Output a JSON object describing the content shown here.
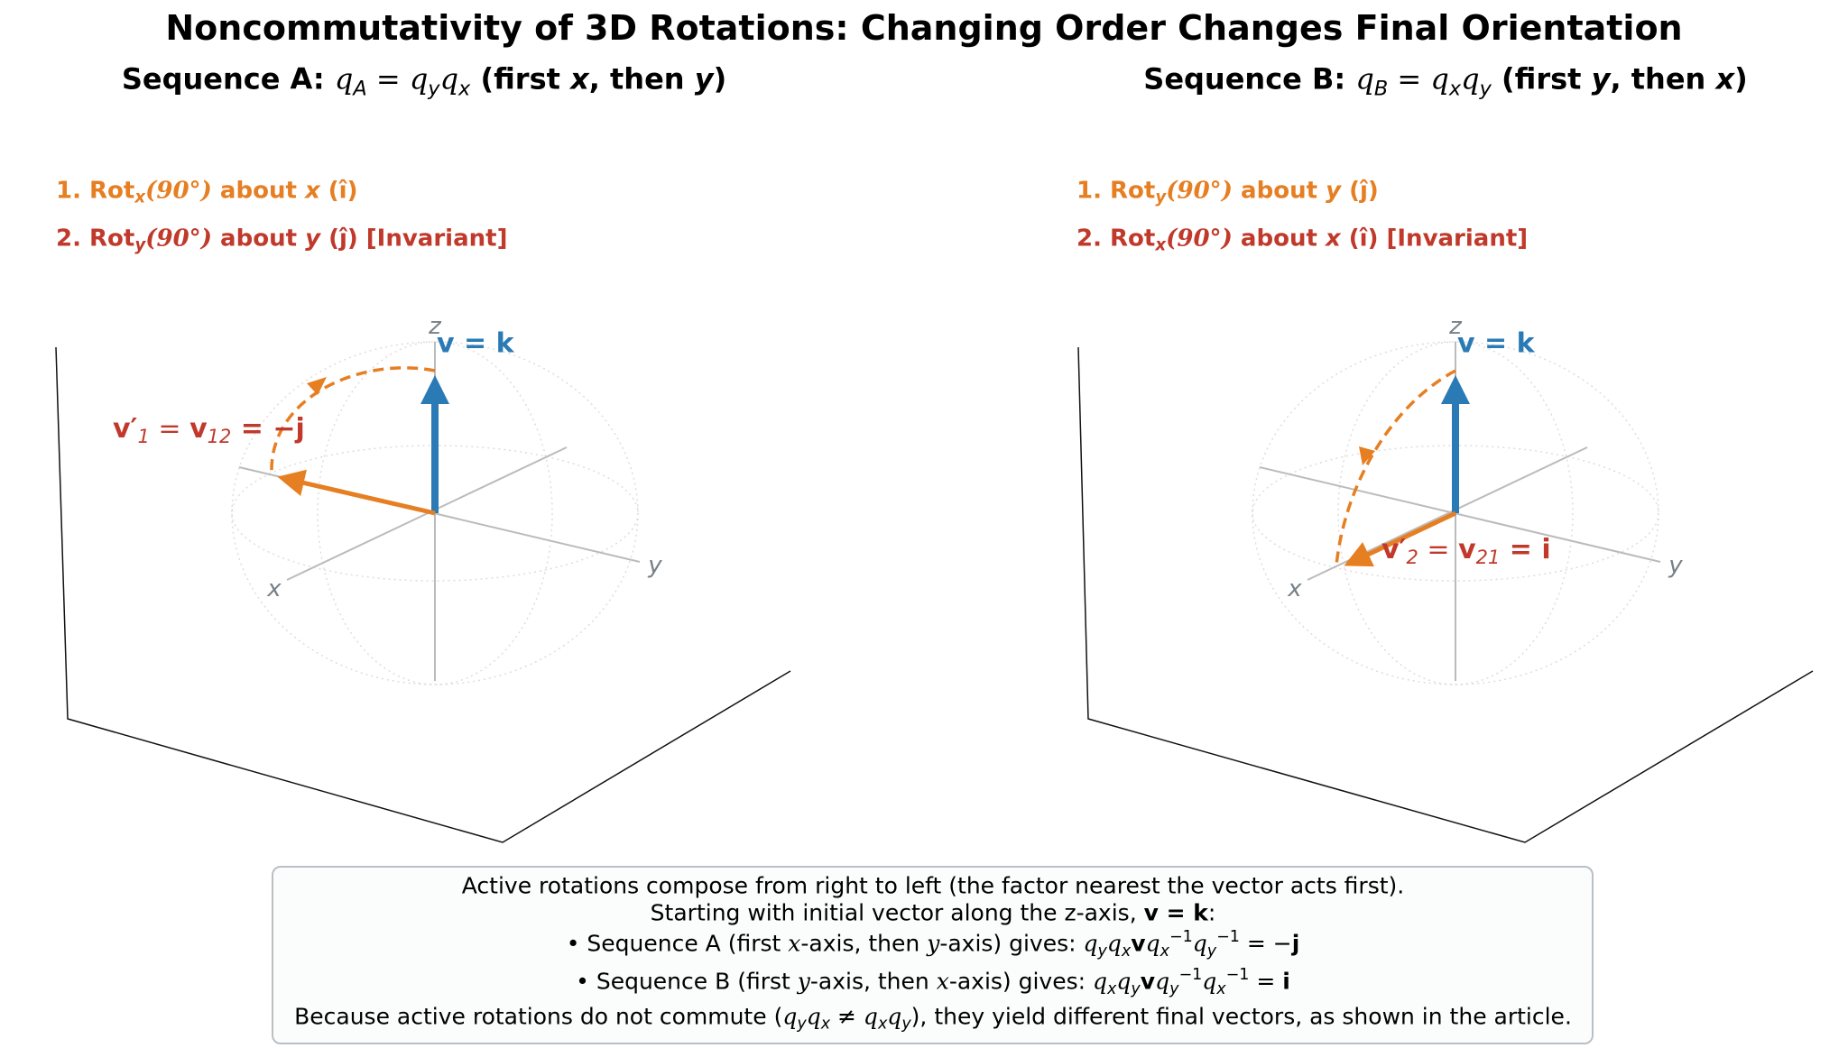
{
  "title": "Noncommutativity of 3D Rotations: Changing Order Changes Final Orientation",
  "panels": [
    {
      "header": [
        "Sequence A: ",
        "q",
        "A",
        " = ",
        "q",
        "y",
        "q",
        "x",
        " (first ",
        "x",
        ", then ",
        "y",
        ")"
      ],
      "steps": [
        [
          "1. Rot",
          "x",
          "(90°)",
          " about ",
          "x",
          " (î)"
        ],
        [
          "2. Rot",
          "y",
          "(90°)",
          " about ",
          "y",
          " (ĵ) [Invariant]"
        ]
      ],
      "axis_labels": [
        "x",
        "y",
        "z"
      ],
      "initial_label": [
        "v = k"
      ],
      "final_label": [
        "v′",
        "1",
        " = ",
        "v",
        "12",
        " = −j"
      ]
    },
    {
      "header": [
        "Sequence B: ",
        "q",
        "B",
        " = ",
        "q",
        "x",
        "q",
        "y",
        " (first ",
        "y",
        ", then ",
        "x",
        ")"
      ],
      "steps": [
        [
          "1. Rot",
          "y",
          "(90°)",
          " about ",
          "y",
          " (ĵ)"
        ],
        [
          "2. Rot",
          "x",
          "(90°)",
          " about ",
          "x",
          " (î) [Invariant]"
        ]
      ],
      "axis_labels": [
        "x",
        "y",
        "z"
      ],
      "initial_label": [
        "v = k"
      ],
      "final_label": [
        "v′",
        "2",
        " = ",
        "v",
        "21",
        " = i"
      ]
    }
  ],
  "caption": [
    [
      "Active rotations compose from right to left (the factor nearest the vector acts first)."
    ],
    [
      "Starting with initial vector along the z-axis, ",
      "v = k",
      ":"
    ],
    [
      "• Sequence A (first ",
      "x",
      "-axis, then ",
      "y",
      "-axis) gives: ",
      "q",
      "y",
      "q",
      "x",
      "v",
      "q",
      "x",
      "−1",
      "q",
      "y",
      "−1",
      " = −",
      "j"
    ],
    [
      "• Sequence B (first ",
      "y",
      "-axis, then ",
      "x",
      "-axis) gives: ",
      "q",
      "x",
      "q",
      "y",
      "v",
      "q",
      "y",
      "−1",
      "q",
      "x",
      "−1",
      " = ",
      "i"
    ],
    [
      "Because active rotations do not commute (",
      "q",
      "y",
      "q",
      "x",
      " ≠ ",
      "q",
      "x",
      "q",
      "y",
      "), they yield different final vectors, as shown in the article."
    ]
  ]
}
